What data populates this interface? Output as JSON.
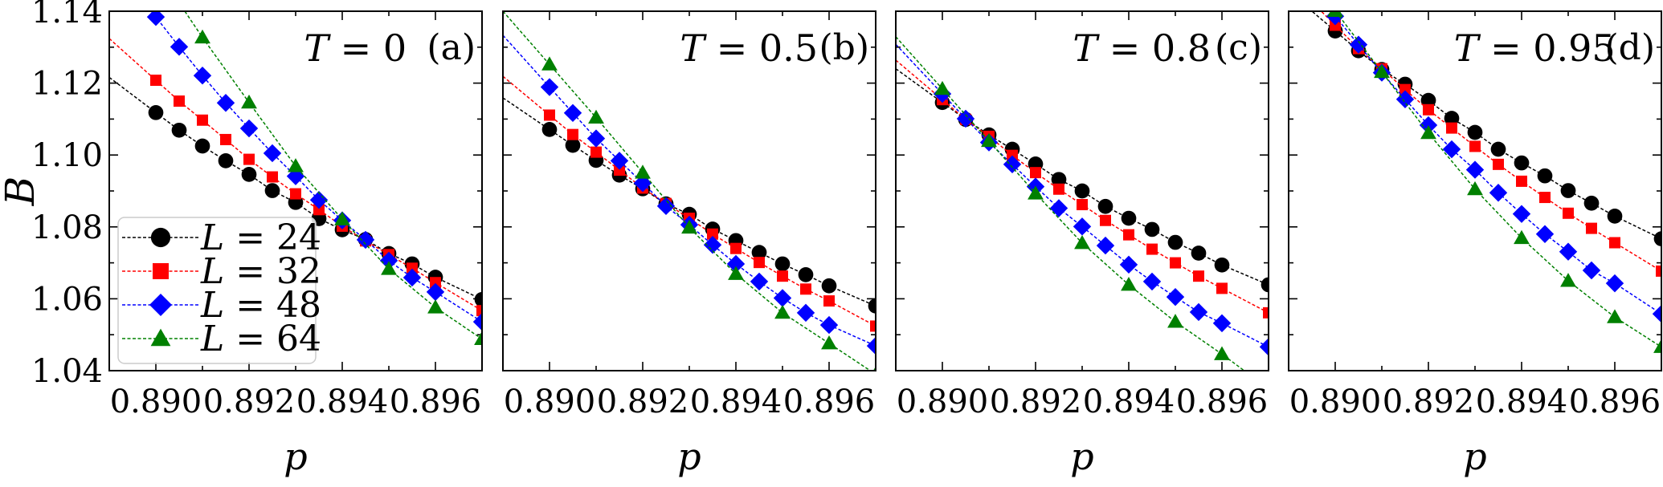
{
  "chart_data": [
    {
      "type": "line",
      "title": "T = 0",
      "panel_label": "(a)",
      "xlabel": "p",
      "ylabel": "B",
      "xlim": [
        0.889,
        0.897
      ],
      "ylim": [
        1.04,
        1.14
      ],
      "xticks": [
        "0.890",
        "0.892",
        "0.894",
        "0.896"
      ],
      "yticks": [
        "1.04",
        "1.06",
        "1.08",
        "1.10",
        "1.12",
        "1.14"
      ],
      "legend": "lower-left",
      "series": [
        {
          "name": "L = 24",
          "color": "#000000",
          "marker": "circle",
          "x": [
            0.89,
            0.8905,
            0.891,
            0.8915,
            0.892,
            0.8925,
            0.893,
            0.8935,
            0.894,
            0.8945,
            0.895,
            0.8955,
            0.896,
            0.897
          ],
          "y": [
            1.1118,
            1.1069,
            1.1025,
            1.0984,
            1.0946,
            1.0901,
            1.0868,
            1.0823,
            1.0792,
            1.0765,
            1.0726,
            1.0697,
            1.066,
            1.0598
          ]
        },
        {
          "name": "L = 32",
          "color": "#ff0000",
          "marker": "square",
          "x": [
            0.89,
            0.8905,
            0.891,
            0.8915,
            0.892,
            0.8925,
            0.893,
            0.8935,
            0.894,
            0.8945,
            0.895,
            0.8955,
            0.896,
            0.897
          ],
          "y": [
            1.1208,
            1.115,
            1.1097,
            1.1043,
            1.0988,
            1.0939,
            1.0892,
            1.0848,
            1.0802,
            1.0761,
            1.0723,
            1.0685,
            1.0645,
            1.0567
          ]
        },
        {
          "name": "L = 48",
          "color": "#0000ff",
          "marker": "diamond",
          "x": [
            0.89,
            0.8905,
            0.891,
            0.8915,
            0.892,
            0.8925,
            0.893,
            0.8935,
            0.894,
            0.8945,
            0.895,
            0.8955,
            0.896,
            0.897
          ],
          "y": [
            1.1384,
            1.1301,
            1.1221,
            1.1145,
            1.1074,
            1.1005,
            1.0941,
            1.0875,
            1.0818,
            1.0764,
            1.0706,
            1.0659,
            1.0619,
            1.0536
          ]
        },
        {
          "name": "L = 64",
          "color": "#008000",
          "marker": "triangle",
          "x": [
            0.89,
            0.891,
            0.892,
            0.893,
            0.894,
            0.895,
            0.896,
            0.897
          ],
          "y": [
            1.152,
            1.1327,
            1.1146,
            1.0969,
            1.0821,
            1.0683,
            1.0576,
            1.0488
          ]
        }
      ]
    },
    {
      "type": "line",
      "title": "T = 0.5",
      "panel_label": "(b)",
      "xlabel": "p",
      "xlim": [
        0.889,
        0.897
      ],
      "ylim": [
        1.04,
        1.14
      ],
      "xticks": [
        "0.890",
        "0.892",
        "0.894",
        "0.896"
      ],
      "series": [
        {
          "name": "L = 24",
          "color": "#000000",
          "marker": "circle",
          "x": [
            0.89,
            0.8905,
            0.891,
            0.8915,
            0.892,
            0.8925,
            0.893,
            0.8935,
            0.894,
            0.8945,
            0.895,
            0.8955,
            0.896,
            0.897
          ],
          "y": [
            1.1071,
            1.1027,
            1.0985,
            1.0944,
            1.0906,
            1.0864,
            1.0835,
            1.0794,
            1.0762,
            1.0729,
            1.0697,
            1.0667,
            1.0636,
            1.058
          ]
        },
        {
          "name": "L = 32",
          "color": "#ff0000",
          "marker": "square",
          "x": [
            0.89,
            0.8905,
            0.891,
            0.8915,
            0.892,
            0.8925,
            0.893,
            0.8935,
            0.894,
            0.8945,
            0.895,
            0.8955,
            0.896,
            0.897
          ],
          "y": [
            1.1111,
            1.1057,
            1.1008,
            1.0958,
            1.0908,
            1.0865,
            1.0824,
            1.078,
            1.074,
            1.0701,
            1.0663,
            1.0627,
            1.0594,
            1.0524
          ]
        },
        {
          "name": "L = 48",
          "color": "#0000ff",
          "marker": "diamond",
          "x": [
            0.89,
            0.8905,
            0.891,
            0.8915,
            0.892,
            0.8925,
            0.893,
            0.8935,
            0.894,
            0.8945,
            0.895,
            0.8955,
            0.896,
            0.897
          ],
          "y": [
            1.1189,
            1.1117,
            1.1046,
            1.0984,
            1.0922,
            1.0858,
            1.0806,
            1.075,
            1.0697,
            1.0648,
            1.0602,
            1.0561,
            1.0527,
            1.0469
          ]
        },
        {
          "name": "L = 64",
          "color": "#008000",
          "marker": "triangle",
          "x": [
            0.89,
            0.891,
            0.892,
            0.893,
            0.894,
            0.895,
            0.896,
            0.897
          ],
          "y": [
            1.1252,
            1.1104,
            1.0951,
            1.0798,
            1.0669,
            1.0561,
            1.0476,
            1.039
          ]
        }
      ]
    },
    {
      "type": "line",
      "title": "T = 0.8",
      "panel_label": "(c)",
      "xlabel": "p",
      "xlim": [
        0.889,
        0.897
      ],
      "ylim": [
        1.04,
        1.14
      ],
      "xticks": [
        "0.890",
        "0.892",
        "0.894",
        "0.896"
      ],
      "series": [
        {
          "name": "L = 24",
          "color": "#000000",
          "marker": "circle",
          "x": [
            0.89,
            0.8905,
            0.891,
            0.8915,
            0.892,
            0.8925,
            0.893,
            0.8935,
            0.894,
            0.8945,
            0.895,
            0.8955,
            0.896,
            0.897
          ],
          "y": [
            1.1146,
            1.1099,
            1.1056,
            1.1016,
            1.0975,
            1.0932,
            1.09,
            1.0857,
            1.0824,
            1.0793,
            1.0757,
            1.0727,
            1.0694,
            1.0639
          ]
        },
        {
          "name": "L = 32",
          "color": "#ff0000",
          "marker": "square",
          "x": [
            0.89,
            0.8905,
            0.891,
            0.8915,
            0.892,
            0.8925,
            0.893,
            0.8935,
            0.894,
            0.8945,
            0.895,
            0.8955,
            0.896,
            0.897
          ],
          "y": [
            1.1154,
            1.1099,
            1.1052,
            1.0999,
            1.0951,
            1.0905,
            1.0862,
            1.0818,
            1.0778,
            1.0738,
            1.07,
            1.0663,
            1.0629,
            1.0561
          ]
        },
        {
          "name": "L = 48",
          "color": "#0000ff",
          "marker": "diamond",
          "x": [
            0.89,
            0.8905,
            0.891,
            0.8915,
            0.892,
            0.8925,
            0.893,
            0.8935,
            0.894,
            0.8945,
            0.895,
            0.8955,
            0.896,
            0.897
          ],
          "y": [
            1.117,
            1.1101,
            1.1035,
            1.0974,
            1.0912,
            1.0852,
            1.0801,
            1.0748,
            1.0695,
            1.0648,
            1.0605,
            1.0563,
            1.0532,
            1.0466
          ]
        },
        {
          "name": "L = 64",
          "color": "#008000",
          "marker": "triangle",
          "x": [
            0.89,
            0.891,
            0.892,
            0.893,
            0.894,
            0.895,
            0.896,
            0.897
          ],
          "y": [
            1.1184,
            1.1039,
            1.0893,
            1.0755,
            1.0639,
            1.0536,
            1.0446,
            1.035
          ]
        }
      ]
    },
    {
      "type": "line",
      "title": "T = 0.95",
      "panel_label": "(d)",
      "xlabel": "p",
      "xlim": [
        0.889,
        0.897
      ],
      "ylim": [
        1.04,
        1.14
      ],
      "xticks": [
        "0.890",
        "0.892",
        "0.894",
        "0.896"
      ],
      "series": [
        {
          "name": "L = 24",
          "color": "#000000",
          "marker": "circle",
          "x": [
            0.89,
            0.8905,
            0.891,
            0.8915,
            0.892,
            0.8925,
            0.893,
            0.8935,
            0.894,
            0.8945,
            0.895,
            0.8955,
            0.896,
            0.897
          ],
          "y": [
            1.1345,
            1.129,
            1.1238,
            1.1197,
            1.1152,
            1.1102,
            1.1063,
            1.1016,
            1.0978,
            1.0942,
            1.0901,
            1.0866,
            1.083,
            1.0767
          ]
        },
        {
          "name": "L = 32",
          "color": "#ff0000",
          "marker": "square",
          "x": [
            0.89,
            0.8905,
            0.891,
            0.8915,
            0.892,
            0.8925,
            0.893,
            0.8935,
            0.894,
            0.8945,
            0.895,
            0.8955,
            0.896,
            0.897
          ],
          "y": [
            1.1361,
            1.1296,
            1.124,
            1.1182,
            1.1126,
            1.1075,
            1.1024,
            1.0974,
            1.0927,
            1.0882,
            1.0838,
            1.0796,
            1.0756,
            1.0677
          ]
        },
        {
          "name": "L = 48",
          "color": "#0000ff",
          "marker": "diamond",
          "x": [
            0.89,
            0.8905,
            0.891,
            0.8915,
            0.892,
            0.8925,
            0.893,
            0.8935,
            0.894,
            0.8945,
            0.895,
            0.8955,
            0.896,
            0.897
          ],
          "y": [
            1.1386,
            1.1307,
            1.1229,
            1.1155,
            1.1083,
            1.1016,
            1.0959,
            1.0895,
            1.0836,
            1.078,
            1.0731,
            1.0679,
            1.0643,
            1.0558
          ]
        },
        {
          "name": "L = 64",
          "color": "#008000",
          "marker": "triangle",
          "x": [
            0.89,
            0.891,
            0.892,
            0.893,
            0.894,
            0.895,
            0.896,
            0.897
          ],
          "y": [
            1.1401,
            1.1231,
            1.1061,
            1.0905,
            1.0769,
            1.065,
            1.0549,
            1.0466
          ]
        }
      ]
    }
  ]
}
